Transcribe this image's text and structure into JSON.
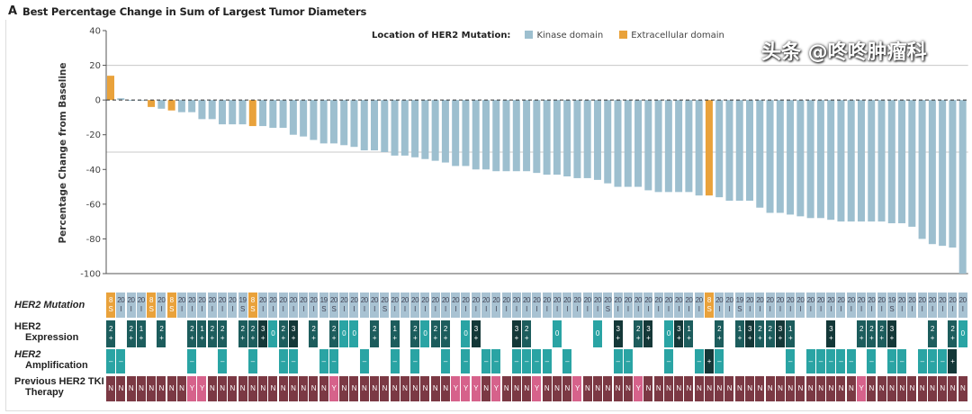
{
  "panel_letter": "A",
  "chart_data": {
    "type": "bar",
    "title": "Best Percentage Change in Sum of Largest Tumor Diameters",
    "xlabel": "",
    "ylabel": "Percentage Change from Baseline",
    "ylim": [
      -100,
      40
    ],
    "yticks": [
      40,
      20,
      0,
      -20,
      -40,
      -60,
      -80,
      -100
    ],
    "reference_lines": [
      20,
      -30
    ],
    "legend": {
      "title": "Location of HER2 Mutation:",
      "position": "top-right",
      "entries": [
        {
          "name": "Kinase domain",
          "color": "#9dbfcf"
        },
        {
          "name": "Extracellular domain",
          "color": "#e9a23b"
        }
      ]
    },
    "values": [
      14,
      1,
      0,
      0,
      -4,
      -5,
      -6,
      -7,
      -7,
      -11,
      -11,
      -14,
      -14,
      -14,
      -15,
      -15,
      -16,
      -16,
      -20,
      -21,
      -23,
      -25,
      -25,
      -26,
      -27,
      -29,
      -29,
      -30,
      -32,
      -32,
      -33,
      -34,
      -35,
      -36,
      -38,
      -38,
      -40,
      -40,
      -41,
      -41,
      -41,
      -41,
      -42,
      -43,
      -43,
      -44,
      -45,
      -45,
      -46,
      -48,
      -50,
      -50,
      -50,
      -52,
      -53,
      -53,
      -53,
      -53,
      -55,
      -55,
      -56,
      -58,
      -58,
      -58,
      -62,
      -65,
      -65,
      -66,
      -67,
      -68,
      -68,
      -69,
      -70,
      -70,
      -70,
      -70,
      -70,
      -71,
      -71,
      -73,
      -80,
      -83,
      -84,
      -85,
      -100
    ],
    "extracellular_columns": [
      1,
      5,
      7,
      15,
      60
    ]
  },
  "annotations": {
    "row_labels": {
      "mutation": [
        "HER2 Mutation"
      ],
      "expression": [
        "HER2",
        "Expression"
      ],
      "amplification": [
        "HER2",
        "Amplification"
      ],
      "tki": [
        "Previous HER2 TKI",
        "Therapy"
      ]
    },
    "mutation_default": [
      "20",
      "I"
    ],
    "mutation_exceptions": {
      "1": [
        "8",
        "S"
      ],
      "5": [
        "8",
        "S"
      ],
      "7": [
        "8",
        "S"
      ],
      "15": [
        "8",
        "S"
      ],
      "60": [
        "8",
        "S"
      ],
      "14": [
        "19",
        "S"
      ],
      "22": [
        "19",
        "S"
      ],
      "63": [
        "19",
        "S"
      ],
      "78": [
        "19",
        "S"
      ],
      "23": [
        "20",
        "S"
      ],
      "28": [
        "20",
        "S"
      ],
      "50": [
        "20",
        "S"
      ]
    },
    "expression": {
      "1": "2+",
      "3": "2+",
      "4": "1+",
      "6": "2+",
      "9": "2+",
      "10": "1+",
      "11": "2+",
      "12": "2+",
      "14": "2+",
      "15": "2+",
      "16": "3+",
      "17": "0",
      "18": "2+",
      "19": "3+",
      "21": "2+",
      "23": "2+",
      "24": "0",
      "25": "0",
      "27": "2+",
      "29": "1+",
      "31": "2+",
      "32": "0",
      "33": "2+",
      "34": "2+",
      "36": "0",
      "37": "3+",
      "41": "3+",
      "42": "2+",
      "45": "0",
      "49": "0",
      "51": "3+",
      "53": "2+",
      "54": "3+",
      "56": "0",
      "57": "3+",
      "58": "1+",
      "61": "2+",
      "63": "1+",
      "64": "3+",
      "65": "2+",
      "66": "2+",
      "67": "3+",
      "68": "1+",
      "72": "3+",
      "75": "2+",
      "76": "2+",
      "77": "2+",
      "78": "3+",
      "82": "2+",
      "84": "2+",
      "85": "0"
    },
    "amplification_negative": [
      1,
      2,
      9,
      12,
      15,
      18,
      19,
      22,
      23,
      26,
      29,
      31,
      34,
      36,
      38,
      39,
      41,
      42,
      43,
      44,
      46,
      51,
      52,
      56,
      59,
      61,
      68,
      70,
      71,
      72,
      73,
      74,
      76,
      78,
      79,
      81,
      82,
      83
    ],
    "amplification_positive": [
      60,
      84
    ],
    "amp_neg_symbol": "–",
    "amp_pos_symbol": "+",
    "tki_yes": [
      9,
      10,
      23,
      35,
      36,
      37,
      39,
      43,
      47,
      53,
      75
    ],
    "tki_yes_label": "Y",
    "tki_no_label": "N",
    "colors": {
      "mutation_kinase": "#a8c2d2",
      "mutation_extracellular": "#e9a23b",
      "expr_low": "#1d5d5d",
      "expr_high": "#143838",
      "expr_zero": "#2aa4a4",
      "amp_neg": "#2aa4a4",
      "amp_pos": "#143838",
      "tki_no": "#7b3944",
      "tki_yes": "#d6628b"
    }
  },
  "watermark": "头条 @咚咚肿瘤科"
}
